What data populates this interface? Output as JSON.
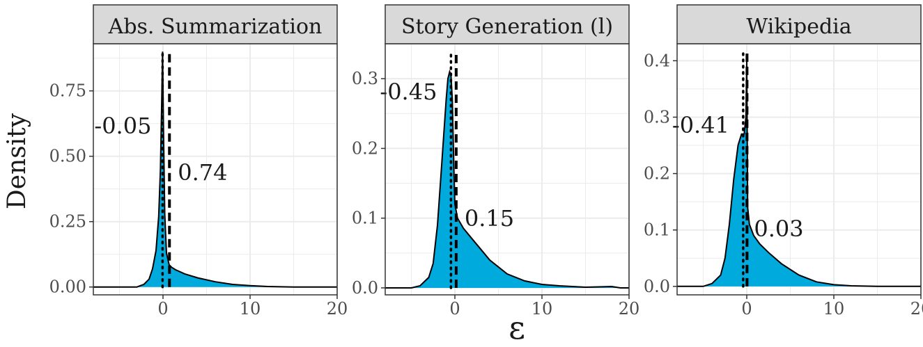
{
  "figure": {
    "xlabel": "ε",
    "ylabel": "Density"
  },
  "chart_data": [
    {
      "type": "area",
      "title": "Abs. Summarization",
      "xlabel": "ε",
      "ylabel": "Density",
      "xlim": [
        -8,
        20
      ],
      "ylim": [
        -0.03,
        0.93
      ],
      "x_ticks": [
        0,
        10,
        20
      ],
      "x_tick_labels": [
        "0",
        "10",
        "20"
      ],
      "y_ticks": [
        0,
        0.25,
        0.5,
        0.75
      ],
      "y_tick_labels": [
        "0.00",
        "0.25",
        "0.50",
        "0.75"
      ],
      "grid": true,
      "density": {
        "x": [
          -8,
          -3,
          -2.2,
          -1.6,
          -1.2,
          -0.8,
          -0.5,
          -0.3,
          -0.15,
          -0.05,
          0.05,
          0.2,
          0.4,
          0.7,
          1.0,
          1.5,
          2.5,
          4,
          6,
          8,
          10,
          12,
          15,
          20
        ],
        "y": [
          0,
          0,
          0.01,
          0.03,
          0.07,
          0.14,
          0.27,
          0.45,
          0.7,
          0.9,
          0.62,
          0.28,
          0.13,
          0.085,
          0.075,
          0.065,
          0.05,
          0.035,
          0.02,
          0.01,
          0.005,
          0.002,
          0,
          0
        ]
      },
      "lines": [
        {
          "value": -0.05,
          "style": "dotted",
          "label": "-0.05"
        },
        {
          "value": 0.74,
          "style": "dashed",
          "label": "0.74"
        }
      ]
    },
    {
      "type": "area",
      "title": "Story Generation (l)",
      "xlabel": "ε",
      "ylabel": "Density",
      "xlim": [
        -8,
        20
      ],
      "ylim": [
        -0.01,
        0.35
      ],
      "x_ticks": [
        0,
        10,
        20
      ],
      "x_tick_labels": [
        "0",
        "10",
        "20"
      ],
      "y_ticks": [
        0,
        0.1,
        0.2,
        0.3
      ],
      "y_tick_labels": [
        "0.0",
        "0.1",
        "0.2",
        "0.3"
      ],
      "grid": true,
      "density": {
        "x": [
          -8,
          -5,
          -4,
          -3,
          -2.5,
          -2,
          -1.5,
          -1,
          -0.8,
          -0.6,
          -0.45,
          -0.3,
          -0.1,
          0,
          0.3,
          1,
          2,
          3,
          4,
          6,
          8,
          10,
          12,
          15,
          18,
          19,
          20
        ],
        "y": [
          0,
          0,
          0.003,
          0.015,
          0.035,
          0.09,
          0.18,
          0.27,
          0.3,
          0.31,
          0.305,
          0.27,
          0.16,
          0.12,
          0.1,
          0.085,
          0.07,
          0.055,
          0.04,
          0.02,
          0.01,
          0.005,
          0.003,
          0.001,
          0.002,
          0,
          0
        ]
      },
      "lines": [
        {
          "value": -0.45,
          "style": "dotted",
          "label": "-0.45"
        },
        {
          "value": 0.15,
          "style": "dashed",
          "label": "0.15"
        }
      ]
    },
    {
      "type": "area",
      "title": "Wikipedia",
      "xlabel": "ε",
      "ylabel": "Density",
      "xlim": [
        -8,
        20
      ],
      "ylim": [
        -0.015,
        0.43
      ],
      "x_ticks": [
        0,
        10,
        20
      ],
      "x_tick_labels": [
        "0",
        "10",
        "20"
      ],
      "y_ticks": [
        0,
        0.1,
        0.2,
        0.3,
        0.4
      ],
      "y_tick_labels": [
        "0.0",
        "0.1",
        "0.2",
        "0.3",
        "0.4"
      ],
      "grid": true,
      "density": {
        "x": [
          -8,
          -5,
          -4,
          -3,
          -2.5,
          -2,
          -1.5,
          -1,
          -0.6,
          -0.3,
          -0.1,
          0,
          0.1,
          0.3,
          0.8,
          1.5,
          2.5,
          4,
          6,
          8,
          10,
          12,
          15,
          20
        ],
        "y": [
          0,
          0,
          0.005,
          0.02,
          0.05,
          0.11,
          0.19,
          0.25,
          0.27,
          0.27,
          0.3,
          0.4,
          0.14,
          0.11,
          0.09,
          0.075,
          0.06,
          0.04,
          0.02,
          0.008,
          0.003,
          0.001,
          0,
          0
        ]
      },
      "lines": [
        {
          "value": -0.41,
          "style": "dotted",
          "label": "-0.41"
        },
        {
          "value": 0.03,
          "style": "dashed",
          "label": "0.03"
        }
      ]
    }
  ],
  "colors": {
    "fill": "#00aadc",
    "strip": "#d9d9d9",
    "panel_bg": "#ffffff",
    "grid": "#ebebeb",
    "text": "#1a1a1a",
    "axis_text": "#4d4d4d"
  }
}
